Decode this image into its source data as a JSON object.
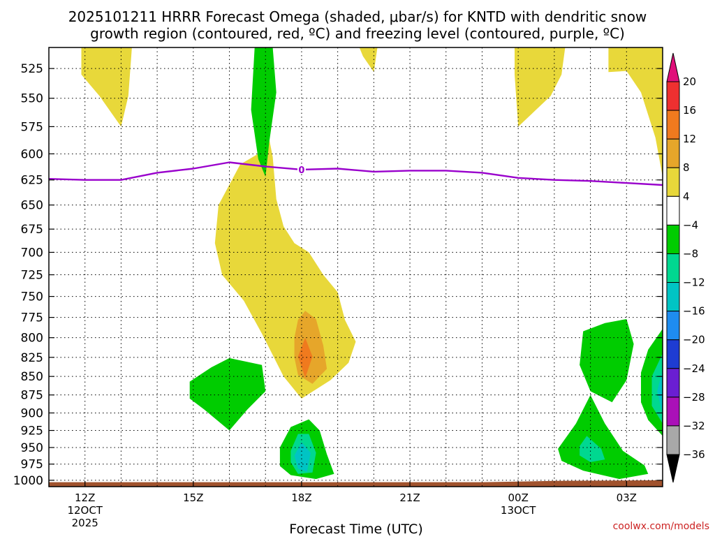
{
  "chart_data": {
    "type": "heatmap",
    "title_line1": "2025101211 HRRR Forecast Omega (shaded, μbar/s) for KNTD with dendritic snow",
    "title_line2": "growth region (contoured, red, ºC) and freezing level (contoured, purple, ºC)",
    "xlabel": "Forecast Time (UTC)",
    "credit": "coolwx.com/models",
    "x_range_hours": [
      -1,
      16
    ],
    "p_range_hpa": [
      508,
      1010
    ],
    "pressure_ticks": [
      525,
      550,
      575,
      600,
      625,
      650,
      675,
      700,
      725,
      750,
      775,
      800,
      825,
      850,
      875,
      900,
      925,
      950,
      975,
      1000
    ],
    "time_ticks": [
      {
        "h": 0,
        "label": "12Z",
        "sub1": "12OCT",
        "sub2": "2025"
      },
      {
        "h": 3,
        "label": "15Z",
        "sub1": "",
        "sub2": ""
      },
      {
        "h": 6,
        "label": "18Z",
        "sub1": "",
        "sub2": ""
      },
      {
        "h": 9,
        "label": "21Z",
        "sub1": "",
        "sub2": ""
      },
      {
        "h": 12,
        "label": "00Z",
        "sub1": "13OCT",
        "sub2": ""
      },
      {
        "h": 15,
        "label": "03Z",
        "sub1": "",
        "sub2": ""
      }
    ],
    "colorbar": {
      "labels": [
        "20",
        "16",
        "12",
        "8",
        "4",
        "−4",
        "−8",
        "−12",
        "−16",
        "−20",
        "−24",
        "−28",
        "−32",
        "−36"
      ],
      "bins": [
        {
          "lo": 16,
          "hi": 20,
          "color": "#ee3030"
        },
        {
          "lo": 12,
          "hi": 16,
          "color": "#f07a1e"
        },
        {
          "lo": 8,
          "hi": 12,
          "color": "#e6a62a"
        },
        {
          "lo": 4,
          "hi": 8,
          "color": "#e8d83a"
        },
        {
          "lo": -4,
          "hi": 4,
          "color": "#ffffff"
        },
        {
          "lo": -8,
          "hi": -4,
          "color": "#00cc00"
        },
        {
          "lo": -12,
          "hi": -8,
          "color": "#00d890"
        },
        {
          "lo": -16,
          "hi": -12,
          "color": "#00c4c4"
        },
        {
          "lo": -20,
          "hi": -16,
          "color": "#1e8cf0"
        },
        {
          "lo": -24,
          "hi": -20,
          "color": "#1e3cd2"
        },
        {
          "lo": -28,
          "hi": -24,
          "color": "#6a1ed2"
        },
        {
          "lo": -32,
          "hi": -28,
          "color": "#aa10b8"
        },
        {
          "lo": -36,
          "hi": -32,
          "color": "#a8a8a8"
        }
      ],
      "top_arrow_color": "#e0107a",
      "bottom_arrow_color": "#000000"
    },
    "freezing_level": {
      "label": "0",
      "color": "#9900cc",
      "points": [
        [
          -1,
          624
        ],
        [
          0,
          625
        ],
        [
          1,
          625
        ],
        [
          2,
          618
        ],
        [
          3,
          614
        ],
        [
          4,
          608
        ],
        [
          5,
          612
        ],
        [
          6,
          615
        ],
        [
          7,
          614
        ],
        [
          8,
          617
        ],
        [
          9,
          616
        ],
        [
          10,
          616
        ],
        [
          11,
          618
        ],
        [
          12,
          623
        ],
        [
          13,
          625
        ],
        [
          14,
          626
        ],
        [
          15,
          628
        ],
        [
          16,
          630
        ],
        [
          16.0,
          630
        ]
      ]
    },
    "ground_color": "#a0522d",
    "omega_regions": [
      {
        "name": "omega-positive-upper-left",
        "value": 6,
        "color": "#e8d83a",
        "points": [
          [
            -0.1,
            508
          ],
          [
            1.3,
            508
          ],
          [
            1.2,
            548
          ],
          [
            1.0,
            575
          ],
          [
            0.4,
            548
          ],
          [
            -0.1,
            530
          ]
        ]
      },
      {
        "name": "omega-positive-upper-mid",
        "value": 6,
        "color": "#e8d83a",
        "points": [
          [
            7.6,
            508
          ],
          [
            8.1,
            508
          ],
          [
            8.0,
            528
          ],
          [
            7.7,
            515
          ]
        ]
      },
      {
        "name": "omega-positive-upper-right1",
        "value": 6,
        "color": "#e8d83a",
        "points": [
          [
            11.9,
            508
          ],
          [
            13.3,
            508
          ],
          [
            13.2,
            530
          ],
          [
            12.9,
            548
          ],
          [
            12.0,
            575
          ],
          [
            11.9,
            530
          ]
        ]
      },
      {
        "name": "omega-positive-upper-right2",
        "value": 6,
        "color": "#e8d83a",
        "points": [
          [
            14.5,
            508
          ],
          [
            16.0,
            508
          ],
          [
            16.0,
            622
          ],
          [
            15.8,
            585
          ],
          [
            15.4,
            545
          ],
          [
            15.0,
            527
          ],
          [
            14.5,
            528
          ]
        ]
      },
      {
        "name": "omega-positive-plume",
        "value": 6,
        "color": "#e8d83a",
        "points": [
          [
            4.8,
            573
          ],
          [
            4.9,
            553
          ],
          [
            5.2,
            603
          ],
          [
            5.3,
            644
          ],
          [
            5.5,
            672
          ],
          [
            5.8,
            690
          ],
          [
            6.2,
            700
          ],
          [
            6.6,
            725
          ],
          [
            7.0,
            745
          ],
          [
            7.2,
            778
          ],
          [
            7.5,
            805
          ],
          [
            7.3,
            832
          ],
          [
            6.8,
            855
          ],
          [
            6.0,
            880
          ],
          [
            5.5,
            850
          ],
          [
            4.9,
            795
          ],
          [
            4.4,
            755
          ],
          [
            3.8,
            725
          ],
          [
            3.6,
            690
          ],
          [
            3.7,
            650
          ],
          [
            4.3,
            610
          ],
          [
            4.8,
            600
          ]
        ]
      },
      {
        "name": "omega-positive-core-8",
        "value": 10,
        "color": "#e6a62a",
        "points": [
          [
            5.8,
            800
          ],
          [
            5.9,
            778
          ],
          [
            6.1,
            767
          ],
          [
            6.4,
            777
          ],
          [
            6.6,
            810
          ],
          [
            6.7,
            840
          ],
          [
            6.3,
            860
          ],
          [
            5.9,
            848
          ],
          [
            5.8,
            825
          ]
        ]
      },
      {
        "name": "omega-positive-core-12",
        "value": 14,
        "color": "#f07a1e",
        "points": [
          [
            5.9,
            824
          ],
          [
            6.1,
            800
          ],
          [
            6.3,
            824
          ],
          [
            6.1,
            852
          ]
        ]
      },
      {
        "name": "omega-negative-upper",
        "value": -6,
        "color": "#00cc00",
        "points": [
          [
            4.7,
            508
          ],
          [
            5.2,
            508
          ],
          [
            5.3,
            545
          ],
          [
            5.1,
            590
          ],
          [
            5.0,
            622
          ],
          [
            4.8,
            605
          ],
          [
            4.6,
            560
          ]
        ]
      },
      {
        "name": "omega-negative-mid-left",
        "value": -6,
        "color": "#00cc00",
        "points": [
          [
            2.9,
            857
          ],
          [
            3.5,
            838
          ],
          [
            4.0,
            826
          ],
          [
            4.9,
            835
          ],
          [
            5.0,
            870
          ],
          [
            4.5,
            895
          ],
          [
            4.0,
            925
          ],
          [
            3.3,
            895
          ],
          [
            2.9,
            880
          ]
        ]
      },
      {
        "name": "omega-negative-low-center",
        "value": -6,
        "color": "#00cc00",
        "points": [
          [
            5.4,
            950
          ],
          [
            5.7,
            920
          ],
          [
            6.2,
            909
          ],
          [
            6.5,
            925
          ],
          [
            6.7,
            960
          ],
          [
            6.9,
            990
          ],
          [
            6.4,
            998
          ],
          [
            5.7,
            992
          ],
          [
            5.4,
            978
          ]
        ]
      },
      {
        "name": "omega-negative-low-center-10",
        "value": -10,
        "color": "#00d890",
        "points": [
          [
            5.7,
            955
          ],
          [
            5.9,
            930
          ],
          [
            6.2,
            930
          ],
          [
            6.4,
            958
          ],
          [
            6.3,
            988
          ],
          [
            5.9,
            990
          ],
          [
            5.7,
            972
          ]
        ]
      },
      {
        "name": "omega-negative-low-center-14",
        "value": -14,
        "color": "#00c4c4",
        "points": [
          [
            5.8,
            962
          ],
          [
            6.0,
            942
          ],
          [
            6.25,
            958
          ],
          [
            6.15,
            987
          ],
          [
            5.9,
            982
          ]
        ]
      },
      {
        "name": "omega-negative-right-upper",
        "value": -6,
        "color": "#00cc00",
        "points": [
          [
            13.8,
            792
          ],
          [
            14.4,
            782
          ],
          [
            15.0,
            777
          ],
          [
            15.2,
            808
          ],
          [
            15.0,
            855
          ],
          [
            14.6,
            885
          ],
          [
            14.0,
            870
          ],
          [
            13.7,
            835
          ]
        ]
      },
      {
        "name": "omega-negative-right-lower",
        "value": -6,
        "color": "#00cc00",
        "points": [
          [
            13.1,
            952
          ],
          [
            13.6,
            915
          ],
          [
            14.0,
            875
          ],
          [
            14.4,
            915
          ],
          [
            14.9,
            955
          ],
          [
            15.5,
            977
          ],
          [
            15.6,
            990
          ],
          [
            14.8,
            998
          ],
          [
            13.8,
            985
          ],
          [
            13.2,
            970
          ]
        ]
      },
      {
        "name": "omega-negative-right-lower-10",
        "value": -10,
        "color": "#00d890",
        "points": [
          [
            13.7,
            948
          ],
          [
            13.9,
            933
          ],
          [
            14.3,
            952
          ],
          [
            14.4,
            968
          ],
          [
            14.0,
            972
          ],
          [
            13.7,
            962
          ]
        ]
      },
      {
        "name": "omega-negative-right-edge",
        "value": -6,
        "color": "#00cc00",
        "points": [
          [
            16.0,
            789
          ],
          [
            15.6,
            815
          ],
          [
            15.4,
            845
          ],
          [
            15.4,
            885
          ],
          [
            15.6,
            910
          ],
          [
            16.0,
            933
          ]
        ]
      },
      {
        "name": "omega-negative-right-edge-10",
        "value": -10,
        "color": "#00d890",
        "points": [
          [
            16.0,
            820
          ],
          [
            15.7,
            850
          ],
          [
            15.7,
            890
          ],
          [
            16.0,
            915
          ]
        ]
      },
      {
        "name": "omega-negative-right-edge-14",
        "value": -14,
        "color": "#00c4c4",
        "points": [
          [
            16.0,
            842
          ],
          [
            15.85,
            870
          ],
          [
            16.0,
            902
          ]
        ]
      }
    ],
    "terrain": [
      [
        -1,
        1003
      ],
      [
        7,
        1003
      ],
      [
        11,
        1003
      ],
      [
        13,
        1001
      ],
      [
        16,
        1000
      ]
    ]
  }
}
